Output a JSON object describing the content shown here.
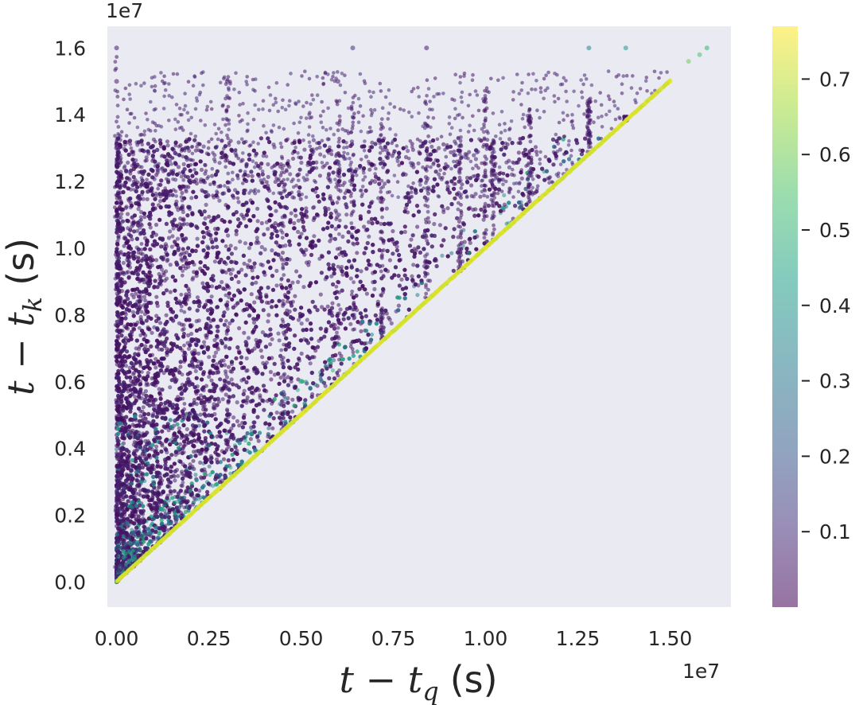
{
  "chart_data": {
    "type": "scatter",
    "title": "",
    "xlabel": "t − t_q (s)",
    "ylabel": "t − t_k (s)",
    "x_label_parts": {
      "var": "t − t",
      "sub": "q",
      "unit": "(s)"
    },
    "y_label_parts": {
      "var": "t − t",
      "sub": "k",
      "unit": "(s)"
    },
    "x_offset_text": "1e7",
    "y_offset_text": "1e7",
    "xlim": [
      -0.025,
      1.665
    ],
    "ylim": [
      -0.075,
      1.665
    ],
    "x_ticks": [
      0.0,
      0.25,
      0.5,
      0.75,
      1.0,
      1.25,
      1.5
    ],
    "x_tick_labels": [
      "0.00",
      "0.25",
      "0.50",
      "0.75",
      "1.00",
      "1.25",
      "1.50"
    ],
    "y_ticks": [
      0.0,
      0.2,
      0.4,
      0.6,
      0.8,
      1.0,
      1.2,
      1.4,
      1.6
    ],
    "y_tick_labels": [
      "0.0",
      "0.2",
      "0.4",
      "0.6",
      "0.8",
      "1.0",
      "1.2",
      "1.4",
      "1.6"
    ],
    "grid": false,
    "background_color": "#eaeaf2",
    "colormap": "viridis",
    "point_alpha": 0.55,
    "colorbar": {
      "range": [
        0.0,
        0.77
      ],
      "ticks": [
        0.1,
        0.2,
        0.3,
        0.4,
        0.5,
        0.6,
        0.7
      ],
      "tick_labels": [
        "0.1",
        "0.2",
        "0.3",
        "0.4",
        "0.5",
        "0.6",
        "0.7"
      ]
    },
    "data_region": "points fill the triangle 0 ≤ x ≤ y; high values along the diagonal y = x, low values elsewhere; vertical streaks at x ≈ 0.0, 0.3, 0.6, 0.84, 1.0",
    "stripe_x_positions": [
      0.0,
      0.064,
      0.18,
      0.3,
      0.45,
      0.6,
      0.64,
      0.72,
      0.84,
      0.93,
      1.0,
      1.02,
      1.12,
      1.28,
      1.38,
      1.45
    ],
    "diagonal_value": 0.75,
    "sample_points": [
      {
        "x": 0.0,
        "y": 1.6,
        "v": 0.05
      },
      {
        "x": 0.0,
        "y": 1.5,
        "v": 0.05
      },
      {
        "x": 0.0,
        "y": 1.3,
        "v": 0.06
      },
      {
        "x": 0.3,
        "y": 1.5,
        "v": 0.05
      },
      {
        "x": 0.6,
        "y": 1.5,
        "v": 0.05
      },
      {
        "x": 0.64,
        "y": 1.6,
        "v": 0.1
      },
      {
        "x": 0.84,
        "y": 1.6,
        "v": 0.06
      },
      {
        "x": 1.28,
        "y": 1.6,
        "v": 0.35
      },
      {
        "x": 1.38,
        "y": 1.6,
        "v": 0.4
      },
      {
        "x": 1.5,
        "y": 1.5,
        "v": 0.75
      },
      {
        "x": 1.55,
        "y": 1.56,
        "v": 0.6
      },
      {
        "x": 1.58,
        "y": 1.58,
        "v": 0.55
      },
      {
        "x": 1.6,
        "y": 1.6,
        "v": 0.5
      },
      {
        "x": 0.5,
        "y": 0.5,
        "v": 0.75
      },
      {
        "x": 1.0,
        "y": 1.0,
        "v": 0.75
      },
      {
        "x": 0.2,
        "y": 0.5,
        "v": 0.15
      },
      {
        "x": 0.1,
        "y": 0.3,
        "v": 0.3
      },
      {
        "x": 0.7,
        "y": 1.2,
        "v": 0.05
      }
    ]
  }
}
